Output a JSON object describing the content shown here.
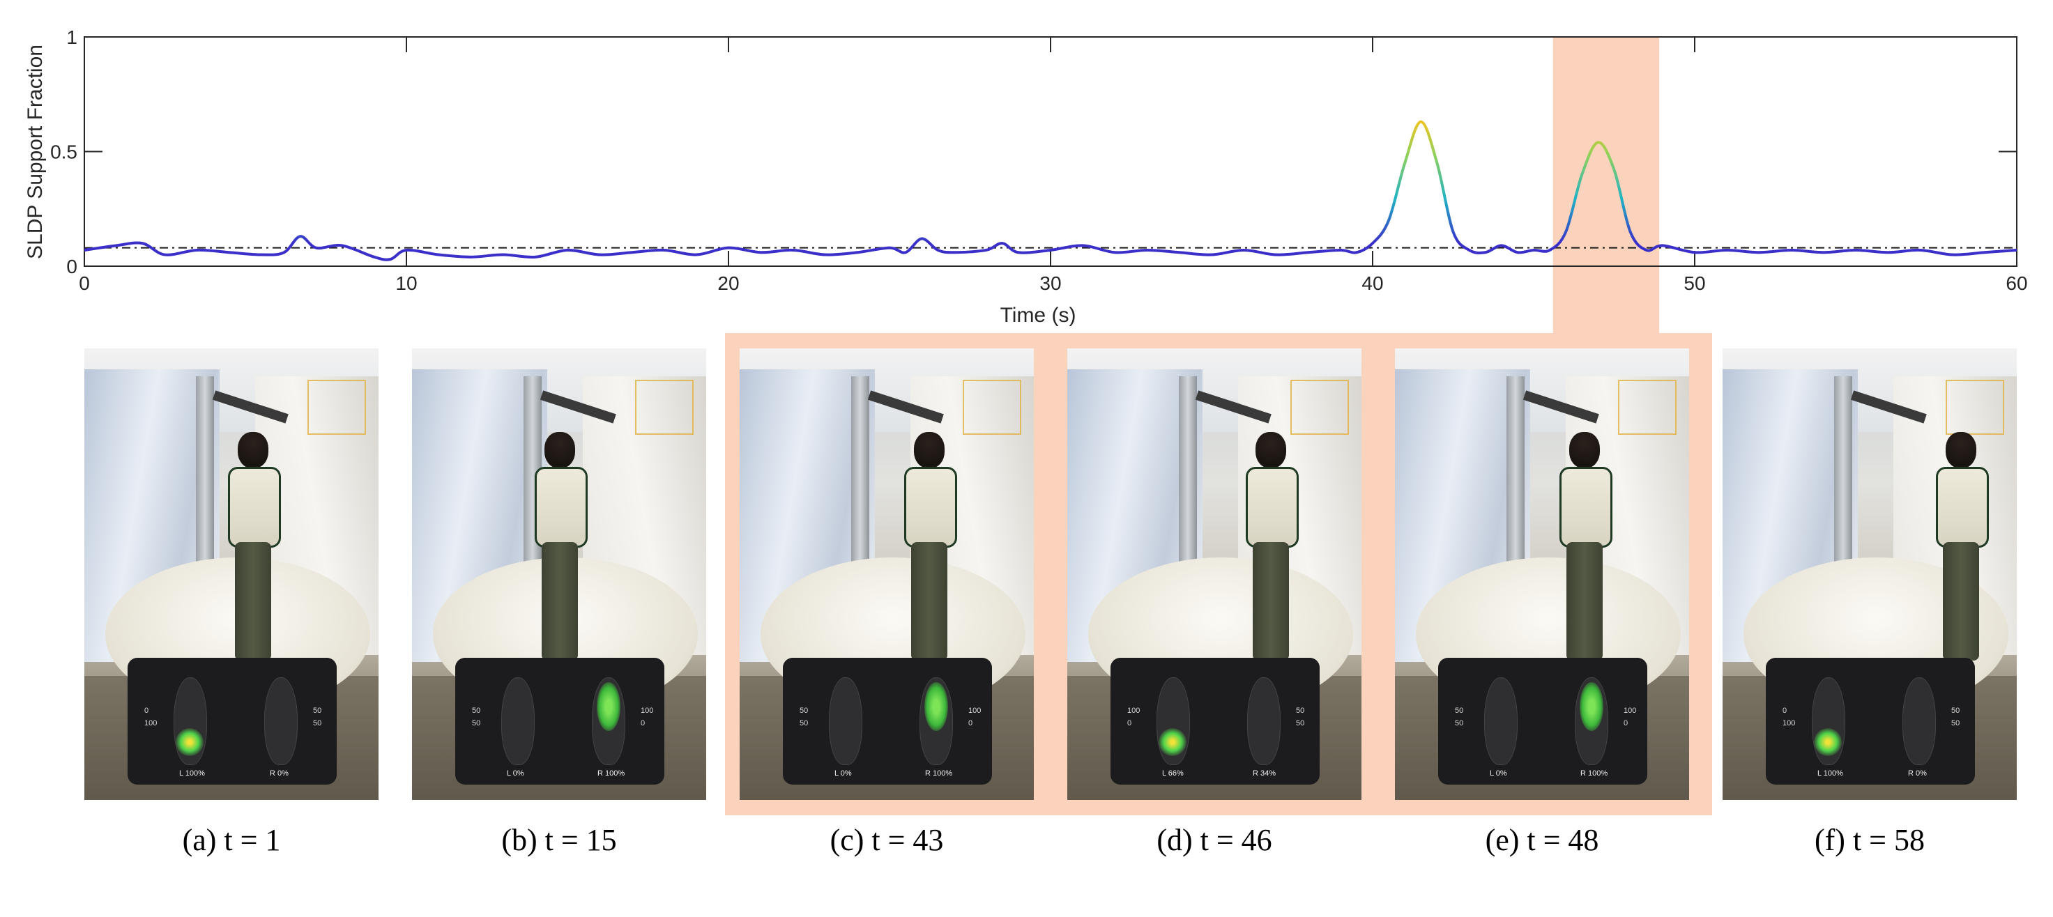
{
  "chart_data": {
    "type": "line",
    "ylabel": "SLDP Support Fraction",
    "xlabel": "Time (s)",
    "xlim": [
      0,
      60
    ],
    "ylim": [
      0,
      1
    ],
    "xticks": [
      "0",
      "10",
      "20",
      "30",
      "40",
      "50",
      "60"
    ],
    "yticks": [
      "0",
      "0.5",
      "1"
    ],
    "threshold": 0.08,
    "highlight_x": [
      45.6,
      48.9
    ],
    "series": [
      {
        "x": [
          0,
          1,
          1.8,
          2.5,
          3.5,
          4.5,
          5.5,
          6.2,
          6.7,
          7.2,
          8,
          9,
          9.5,
          10,
          11,
          12,
          13,
          14,
          15,
          16,
          17,
          18,
          19,
          20,
          21,
          22,
          23,
          24,
          25,
          25.5,
          26,
          26.5,
          27,
          28,
          28.5,
          29,
          30,
          31,
          32,
          33,
          34,
          35,
          36,
          37,
          38,
          39,
          39.5,
          40,
          40.5,
          41,
          41.5,
          42,
          42.5,
          43,
          43.5,
          44,
          44.5,
          45,
          45.5,
          46,
          46.5,
          47,
          47.5,
          48,
          48.5,
          49,
          50,
          51,
          52,
          53,
          54,
          55,
          56,
          57,
          58,
          59,
          60
        ],
        "y": [
          0.07,
          0.09,
          0.1,
          0.05,
          0.07,
          0.06,
          0.05,
          0.06,
          0.13,
          0.08,
          0.09,
          0.04,
          0.03,
          0.07,
          0.05,
          0.04,
          0.05,
          0.04,
          0.07,
          0.05,
          0.06,
          0.07,
          0.05,
          0.08,
          0.06,
          0.07,
          0.05,
          0.06,
          0.08,
          0.06,
          0.12,
          0.07,
          0.06,
          0.07,
          0.1,
          0.06,
          0.07,
          0.09,
          0.06,
          0.07,
          0.06,
          0.05,
          0.07,
          0.05,
          0.06,
          0.07,
          0.06,
          0.1,
          0.2,
          0.45,
          0.63,
          0.45,
          0.15,
          0.07,
          0.06,
          0.09,
          0.06,
          0.07,
          0.07,
          0.15,
          0.4,
          0.54,
          0.42,
          0.15,
          0.07,
          0.09,
          0.06,
          0.07,
          0.06,
          0.07,
          0.06,
          0.07,
          0.06,
          0.07,
          0.05,
          0.06,
          0.07
        ]
      }
    ]
  },
  "panels": [
    {
      "caption": "(a) t = 1",
      "left_pct": "100",
      "right_pct": "0",
      "left_val": "L",
      "right_val": "R",
      "scale_left": [
        "0",
        "100"
      ],
      "scale_right": [
        "50",
        "50"
      ]
    },
    {
      "caption": "(b) t = 15",
      "left_pct": "0",
      "right_pct": "100",
      "left_val": "L",
      "right_val": "R",
      "scale_left": [
        "50",
        "50"
      ],
      "scale_right": [
        "100",
        "0"
      ]
    },
    {
      "caption": "(c) t = 43",
      "left_pct": "0",
      "right_pct": "100",
      "left_val": "L",
      "right_val": "R",
      "scale_left": [
        "50",
        "50"
      ],
      "scale_right": [
        "100",
        "0"
      ]
    },
    {
      "caption": "(d) t = 46",
      "left_pct": "66",
      "right_pct": "34",
      "left_val": "L",
      "right_val": "R",
      "scale_left": [
        "100",
        "0"
      ],
      "scale_right": [
        "50",
        "50"
      ]
    },
    {
      "caption": "(e) t = 48",
      "left_pct": "0",
      "right_pct": "100",
      "left_val": "L",
      "right_val": "R",
      "scale_left": [
        "50",
        "50"
      ],
      "scale_right": [
        "100",
        "0"
      ]
    },
    {
      "caption": "(f) t = 58",
      "left_pct": "100",
      "right_pct": "0",
      "left_val": "L",
      "right_val": "R",
      "scale_left": [
        "0",
        "100"
      ],
      "scale_right": [
        "50",
        "50"
      ]
    }
  ],
  "colors": {
    "highlight": "#fbd3bd",
    "threshold": "#1a1a1a",
    "line_low": "#3b2fc9",
    "line_mid": "#20b3c4",
    "line_high": "#f7c21c"
  }
}
